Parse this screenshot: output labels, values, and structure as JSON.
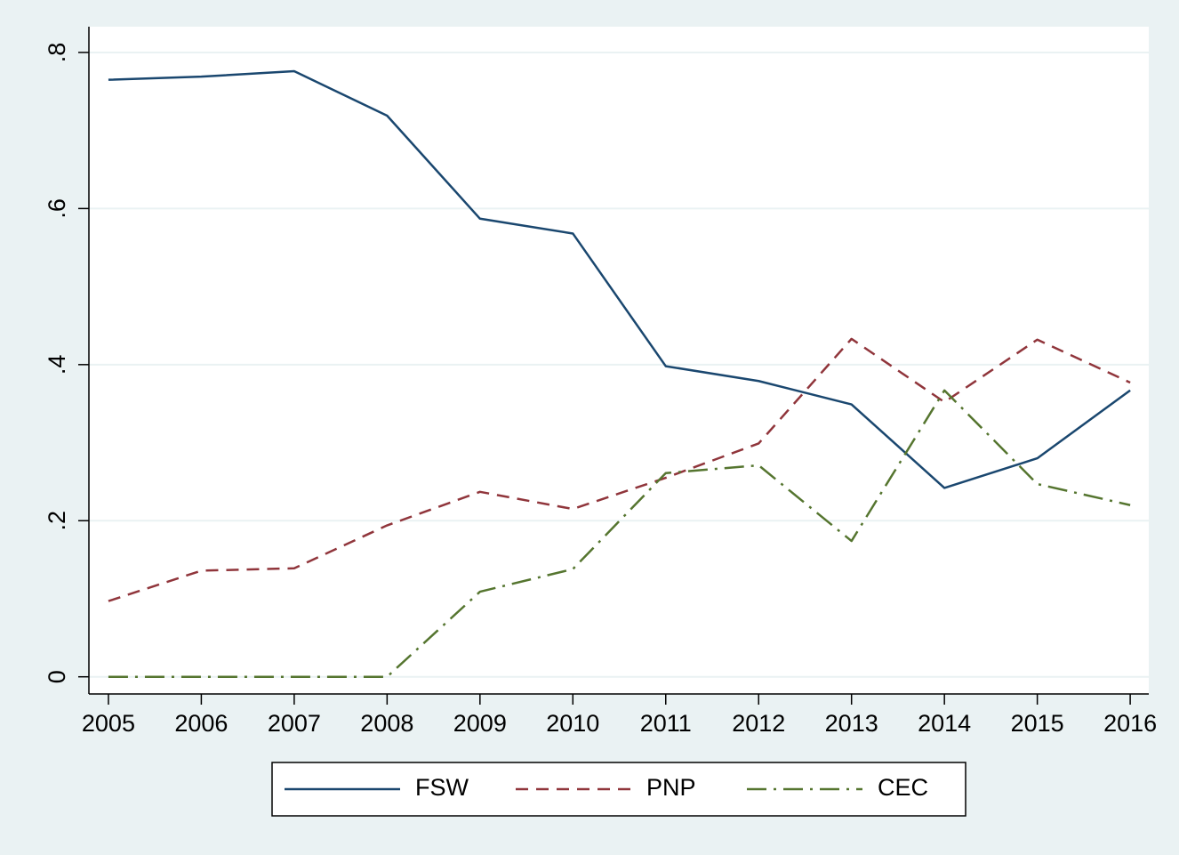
{
  "chart_data": {
    "type": "line",
    "x": [
      2005,
      2006,
      2007,
      2008,
      2009,
      2010,
      2011,
      2012,
      2013,
      2014,
      2015,
      2016
    ],
    "series": [
      {
        "name": "FSW",
        "color": "#1a476f",
        "style": "solid",
        "values": [
          0.765,
          0.769,
          0.776,
          0.719,
          0.587,
          0.568,
          0.398,
          0.379,
          0.349,
          0.242,
          0.28,
          0.367
        ]
      },
      {
        "name": "PNP",
        "color": "#90353b",
        "style": "dash",
        "values": [
          0.097,
          0.136,
          0.139,
          0.194,
          0.237,
          0.215,
          0.255,
          0.299,
          0.433,
          0.352,
          0.432,
          0.377
        ]
      },
      {
        "name": "CEC",
        "color": "#55752f",
        "style": "dashdot",
        "values": [
          0,
          0,
          0,
          0,
          0.109,
          0.138,
          0.261,
          0.271,
          0.174,
          0.367,
          0.247,
          0.22
        ]
      }
    ],
    "xlim": [
      2004.79,
      2016.2
    ],
    "xticks": [
      2005,
      2006,
      2007,
      2008,
      2009,
      2010,
      2011,
      2012,
      2013,
      2014,
      2015,
      2016
    ],
    "ylim": [
      -0.022,
      0.833
    ],
    "yticks": [
      0,
      {
        "value": 0.2,
        "label": ".2"
      },
      {
        "value": 0.4,
        "label": ".4"
      },
      {
        "value": 0.6,
        "label": ".6"
      },
      {
        "value": 0.8,
        "label": ".8"
      }
    ],
    "grid": true,
    "legend": "bottom"
  }
}
